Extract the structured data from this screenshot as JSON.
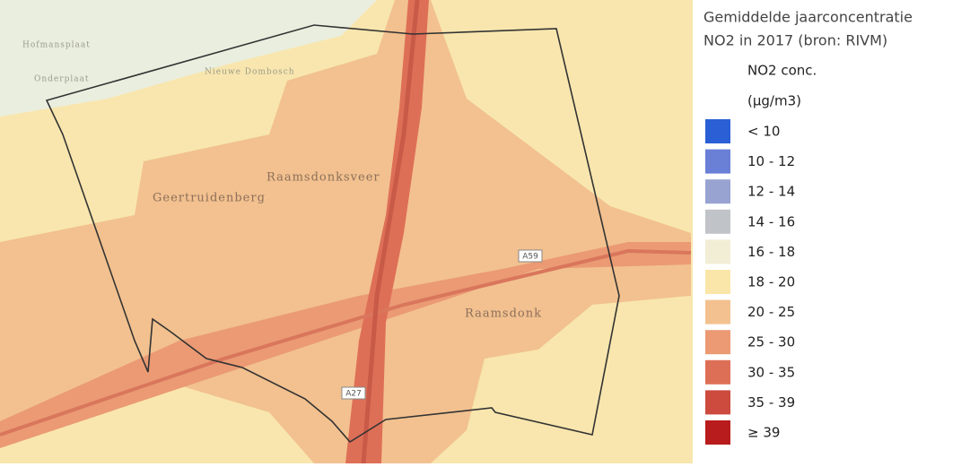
{
  "map": {
    "labels": [
      "Hofmansplaat",
      "Onderplaat",
      "Nieuwe Dombosch",
      "Raamsdonksveer",
      "Geertruidenberg",
      "Raamsdonk"
    ],
    "roads": [
      "A59",
      "A27"
    ]
  },
  "legend": {
    "title": [
      "Gemiddelde jaarconcentratie",
      "NO2 in 2017 (bron: RIVM)"
    ],
    "unit": [
      "NO2 conc.",
      "(µg/m3)"
    ],
    "items": [
      {
        "label": "< 10",
        "color": "#2b5fd6"
      },
      {
        "label": "10 - 12",
        "color": "#6a7fd6"
      },
      {
        "label": "12 - 14",
        "color": "#99a3d2"
      },
      {
        "label": "14 - 16",
        "color": "#c0c3c8"
      },
      {
        "label": "16 - 18",
        "color": "#f2eed6"
      },
      {
        "label": "18 - 20",
        "color": "#f9e6a8"
      },
      {
        "label": "20 - 25",
        "color": "#f2c18f"
      },
      {
        "label": "25 - 30",
        "color": "#eb9a74"
      },
      {
        "label": "30 - 35",
        "color": "#de6f57"
      },
      {
        "label": "35 - 39",
        "color": "#cc4a3e"
      },
      {
        "label": "≥ 39",
        "color": "#b81c1c"
      }
    ]
  }
}
